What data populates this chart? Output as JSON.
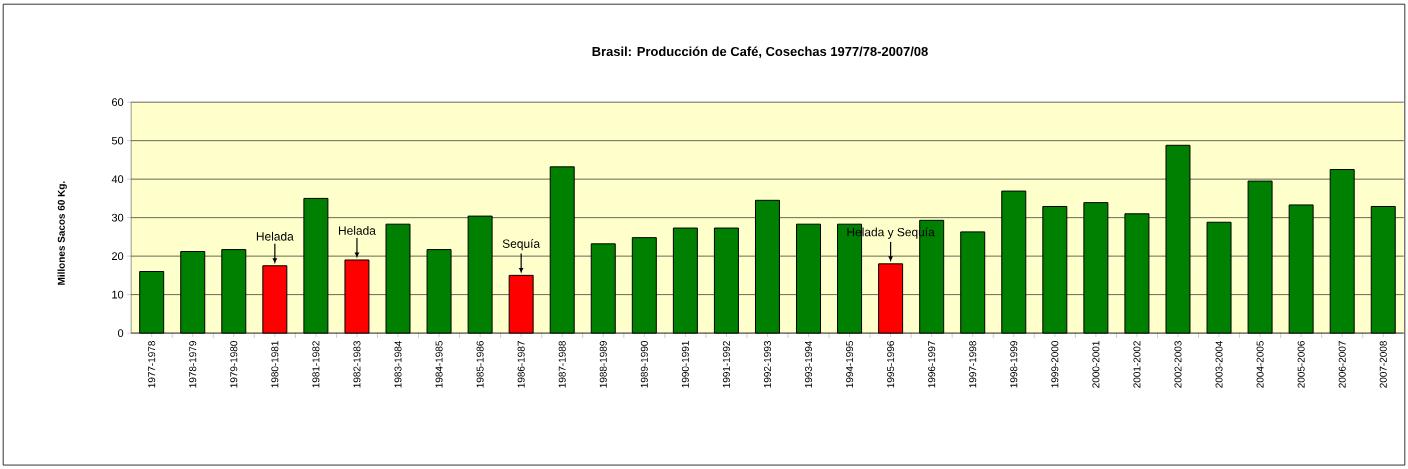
{
  "chart_data": {
    "type": "bar",
    "title": "Brasil: Producción de Café, Cosechas 1977/78-2007/08",
    "ylabel": "Millones Sacos 60 Kg.",
    "categories": [
      "1977-1978",
      "1978-1979",
      "1979-1980",
      "1980-1981",
      "1981-1982",
      "1982-1983",
      "1983-1984",
      "1984-1985",
      "1985-1986",
      "1986-1987",
      "1987-1988",
      "1988-1989",
      "1989-1990",
      "1990-1991",
      "1991-1992",
      "1992-1993",
      "1993-1994",
      "1994-1995",
      "1995-1996",
      "1996-1997",
      "1997-1998",
      "1998-1999",
      "1999-2000",
      "2000-2001",
      "2001-2002",
      "2002-2003",
      "2003-2004",
      "2004-2005",
      "2005-2006",
      "2006-2007",
      "2007-2008"
    ],
    "values": [
      16,
      21.2,
      21.7,
      17.5,
      35,
      19,
      28.3,
      21.7,
      30.4,
      15,
      43.2,
      23.2,
      24.8,
      27.3,
      27.3,
      34.5,
      28.3,
      28.3,
      18,
      29.3,
      26.3,
      36.9,
      32.9,
      33.9,
      31,
      48.8,
      28.8,
      39.5,
      33.3,
      42.5,
      32.9
    ],
    "colors": [
      "#008000",
      "#008000",
      "#008000",
      "#ff0000",
      "#008000",
      "#ff0000",
      "#008000",
      "#008000",
      "#008000",
      "#ff0000",
      "#008000",
      "#008000",
      "#008000",
      "#008000",
      "#008000",
      "#008000",
      "#008000",
      "#008000",
      "#ff0000",
      "#008000",
      "#008000",
      "#008000",
      "#008000",
      "#008000",
      "#008000",
      "#008000",
      "#008000",
      "#008000",
      "#008000",
      "#008000",
      "#008000"
    ],
    "ylim": [
      0,
      60
    ],
    "yticks": [
      0,
      10,
      20,
      30,
      40,
      50,
      60
    ],
    "grid": "y",
    "annotations": [
      {
        "text": "Helada",
        "x": "1980-1981",
        "y": 17.5
      },
      {
        "text": "Helada",
        "x": "1982-1983",
        "y": 19
      },
      {
        "text": "Sequía",
        "x": "1986-1987",
        "y": 15
      },
      {
        "text": "Helada y Sequía",
        "x": "1995-1996",
        "y": 18
      }
    ]
  }
}
